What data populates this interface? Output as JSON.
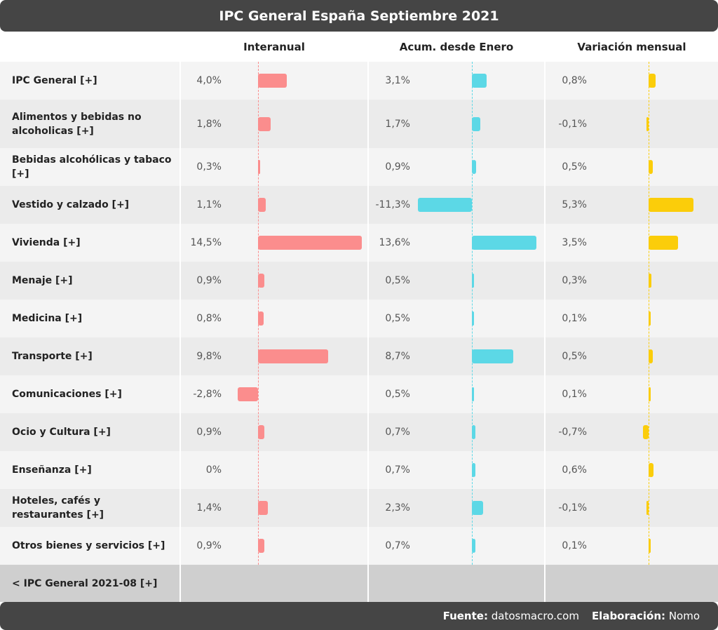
{
  "title": "IPC General España Septiembre 2021",
  "columns": [
    "Interanual",
    "Acum. desde Enero",
    "Variación mensual"
  ],
  "colors": {
    "interanual": "#fb8d8d",
    "acumulado": "#5cd8e6",
    "mensual": "#fbcd0a"
  },
  "chart_data": {
    "type": "bar",
    "categories": [
      "IPC General [+]",
      "Alimentos y bebidas no alcoholicas [+]",
      "Bebidas alcohólicas y tabaco [+]",
      "Vestido y calzado [+]",
      "Vivienda [+]",
      "Menaje [+]",
      "Medicina [+]",
      "Transporte [+]",
      "Comunicaciones [+]",
      "Ocio y Cultura [+]",
      "Enseñanza [+]",
      "Hoteles, cafés y restaurantes [+]",
      "Otros bienes y servicios [+]"
    ],
    "series": [
      {
        "name": "Interanual",
        "values": [
          4.0,
          1.8,
          0.3,
          1.1,
          14.5,
          0.9,
          0.8,
          9.8,
          -2.8,
          0.9,
          0,
          1.4,
          0.9
        ],
        "labels": [
          "4,0%",
          "1,8%",
          "0,3%",
          "1,1%",
          "14,5%",
          "0,9%",
          "0,8%",
          "9,8%",
          "-2,8%",
          "0,9%",
          "0%",
          "1,4%",
          "0,9%"
        ]
      },
      {
        "name": "Acum. desde Enero",
        "values": [
          3.1,
          1.7,
          0.9,
          -11.3,
          13.6,
          0.5,
          0.5,
          8.7,
          0.5,
          0.7,
          0.7,
          2.3,
          0.7
        ],
        "labels": [
          "3,1%",
          "1,7%",
          "0,9%",
          "-11,3%",
          "13,6%",
          "0,5%",
          "0,5%",
          "8,7%",
          "0,5%",
          "0,7%",
          "0,7%",
          "2,3%",
          "0,7%"
        ]
      },
      {
        "name": "Variación mensual",
        "values": [
          0.8,
          -0.1,
          0.5,
          5.3,
          3.5,
          0.3,
          0.1,
          0.5,
          0.1,
          -0.7,
          0.6,
          -0.1,
          0.1
        ],
        "labels": [
          "0,8%",
          "-0,1%",
          "0,5%",
          "5,3%",
          "3,5%",
          "0,3%",
          "0,1%",
          "0,5%",
          "0,1%",
          "-0,7%",
          "0,6%",
          "-0,1%",
          "0,1%"
        ]
      }
    ]
  },
  "footer_row_label": "< IPC General 2021-08 [+]",
  "footer": {
    "source_label": "Fuente:",
    "source_value": "datosmacro.com",
    "credit_label": "Elaboración:",
    "credit_value": "Nomo"
  }
}
